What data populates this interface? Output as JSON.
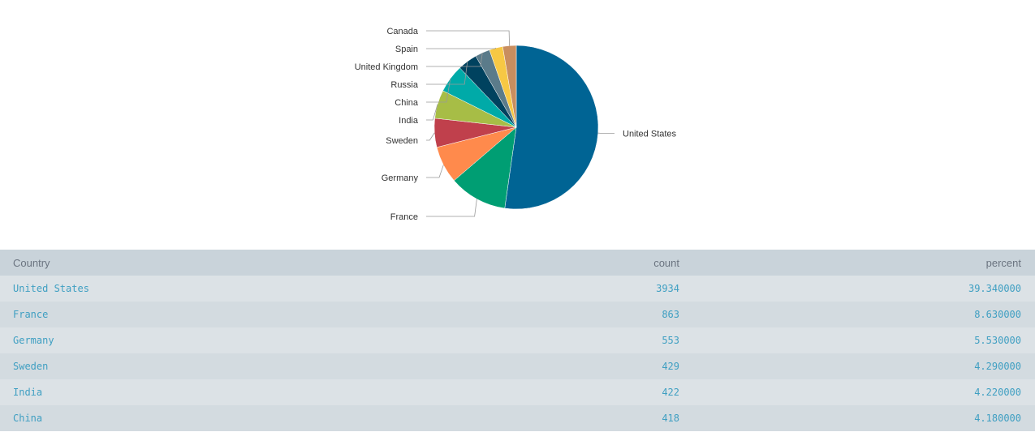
{
  "chart_data": {
    "type": "pie",
    "slices": [
      {
        "label": "United States",
        "value": 3934,
        "color": "#006494"
      },
      {
        "label": "France",
        "value": 863,
        "color": "#009e73"
      },
      {
        "label": "Germany",
        "value": 553,
        "color": "#ff8a4c"
      },
      {
        "label": "Sweden",
        "value": 429,
        "color": "#c0404c"
      },
      {
        "label": "India",
        "value": 422,
        "color": "#a7bd46"
      },
      {
        "label": "China",
        "value": 418,
        "color": "#00aaa8"
      },
      {
        "label": "Russia",
        "value": 290,
        "color": "#00425f"
      },
      {
        "label": "United Kingdom",
        "value": 220,
        "color": "#5b7b8a"
      },
      {
        "label": "Spain",
        "value": 200,
        "color": "#f7c844"
      },
      {
        "label": "Canada",
        "value": 200,
        "color": "#c98e5f"
      }
    ]
  },
  "table": {
    "headers": {
      "country": "Country",
      "count": "count",
      "percent": "percent"
    },
    "rows": [
      {
        "country": "United States",
        "count": "3934",
        "percent": "39.340000"
      },
      {
        "country": "France",
        "count": "863",
        "percent": "8.630000"
      },
      {
        "country": "Germany",
        "count": "553",
        "percent": "5.530000"
      },
      {
        "country": "Sweden",
        "count": "429",
        "percent": "4.290000"
      },
      {
        "country": "India",
        "count": "422",
        "percent": "4.220000"
      },
      {
        "country": "China",
        "count": "418",
        "percent": "4.180000"
      }
    ]
  }
}
